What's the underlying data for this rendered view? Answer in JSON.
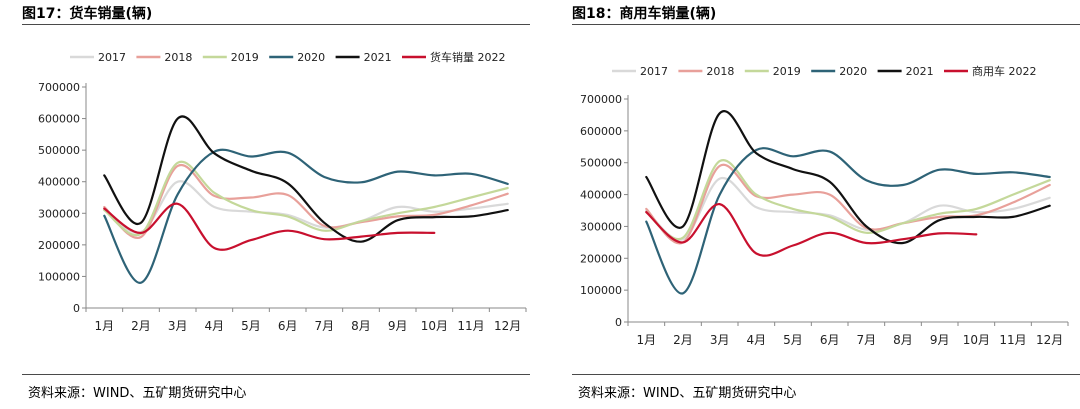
{
  "left": {
    "title": "图17：货车销量(辆)",
    "source": "资料来源：WIND、五矿期货研究中心"
  },
  "right": {
    "title": "图18：商用车销量(辆)",
    "source": "资料来源：WIND、五矿期货研究中心"
  },
  "colors": {
    "2017": "#d9d9d9",
    "2018": "#e8a09a",
    "2019": "#c4d89a",
    "2020": "#2e6377",
    "2021": "#111111",
    "2022": "#c8102e"
  },
  "chart_data": [
    {
      "type": "line",
      "categories": [
        "1月",
        "2月",
        "3月",
        "4月",
        "5月",
        "6月",
        "7月",
        "8月",
        "9月",
        "10月",
        "11月",
        "12月"
      ],
      "ylim": [
        0,
        700000
      ],
      "yticks": [
        "0",
        "100000",
        "200000",
        "300000",
        "400000",
        "500000",
        "600000",
        "700000"
      ],
      "grid": false,
      "legend": "top",
      "series": [
        {
          "name": "2017",
          "values": [
            310000,
            240000,
            400000,
            320000,
            305000,
            295000,
            255000,
            275000,
            320000,
            305000,
            315000,
            330000
          ]
        },
        {
          "name": "2018",
          "values": [
            320000,
            225000,
            450000,
            355000,
            350000,
            358000,
            260000,
            272000,
            290000,
            295000,
            325000,
            362000
          ]
        },
        {
          "name": "2019",
          "values": [
            310000,
            235000,
            460000,
            365000,
            310000,
            290000,
            245000,
            275000,
            300000,
            320000,
            350000,
            380000
          ]
        },
        {
          "name": "2020",
          "values": [
            292000,
            80000,
            360000,
            495000,
            480000,
            492000,
            415000,
            398000,
            432000,
            420000,
            425000,
            393000
          ]
        },
        {
          "name": "2021",
          "values": [
            420000,
            270000,
            600000,
            490000,
            435000,
            395000,
            270000,
            210000,
            278000,
            288000,
            290000,
            310000
          ]
        },
        {
          "name": "货车销量 2022",
          "values": [
            315000,
            238000,
            330000,
            190000,
            215000,
            245000,
            218000,
            226000,
            238000,
            238000,
            null,
            null
          ]
        }
      ]
    },
    {
      "type": "line",
      "categories": [
        "1月",
        "2月",
        "3月",
        "4月",
        "5月",
        "6月",
        "7月",
        "8月",
        "9月",
        "10月",
        "11月",
        "12月"
      ],
      "ylim": [
        0,
        700000
      ],
      "yticks": [
        "0",
        "100000",
        "200000",
        "300000",
        "400000",
        "500000",
        "600000",
        "700000"
      ],
      "grid": false,
      "legend": "top",
      "series": [
        {
          "name": "2017",
          "values": [
            350000,
            260000,
            450000,
            360000,
            345000,
            335000,
            290000,
            310000,
            365000,
            345000,
            355000,
            390000
          ]
        },
        {
          "name": "2018",
          "values": [
            355000,
            250000,
            490000,
            395000,
            400000,
            400000,
            295000,
            310000,
            330000,
            335000,
            375000,
            430000
          ]
        },
        {
          "name": "2019",
          "values": [
            345000,
            265000,
            505000,
            400000,
            355000,
            330000,
            280000,
            310000,
            340000,
            355000,
            400000,
            445000
          ]
        },
        {
          "name": "2020",
          "values": [
            315000,
            90000,
            400000,
            540000,
            520000,
            535000,
            445000,
            430000,
            478000,
            465000,
            470000,
            455000
          ]
        },
        {
          "name": "2021",
          "values": [
            455000,
            300000,
            655000,
            530000,
            480000,
            440000,
            300000,
            248000,
            320000,
            330000,
            330000,
            365000
          ]
        },
        {
          "name": "商用车 2022",
          "values": [
            345000,
            250000,
            370000,
            215000,
            240000,
            280000,
            248000,
            260000,
            278000,
            275000,
            null,
            null
          ]
        }
      ]
    }
  ]
}
